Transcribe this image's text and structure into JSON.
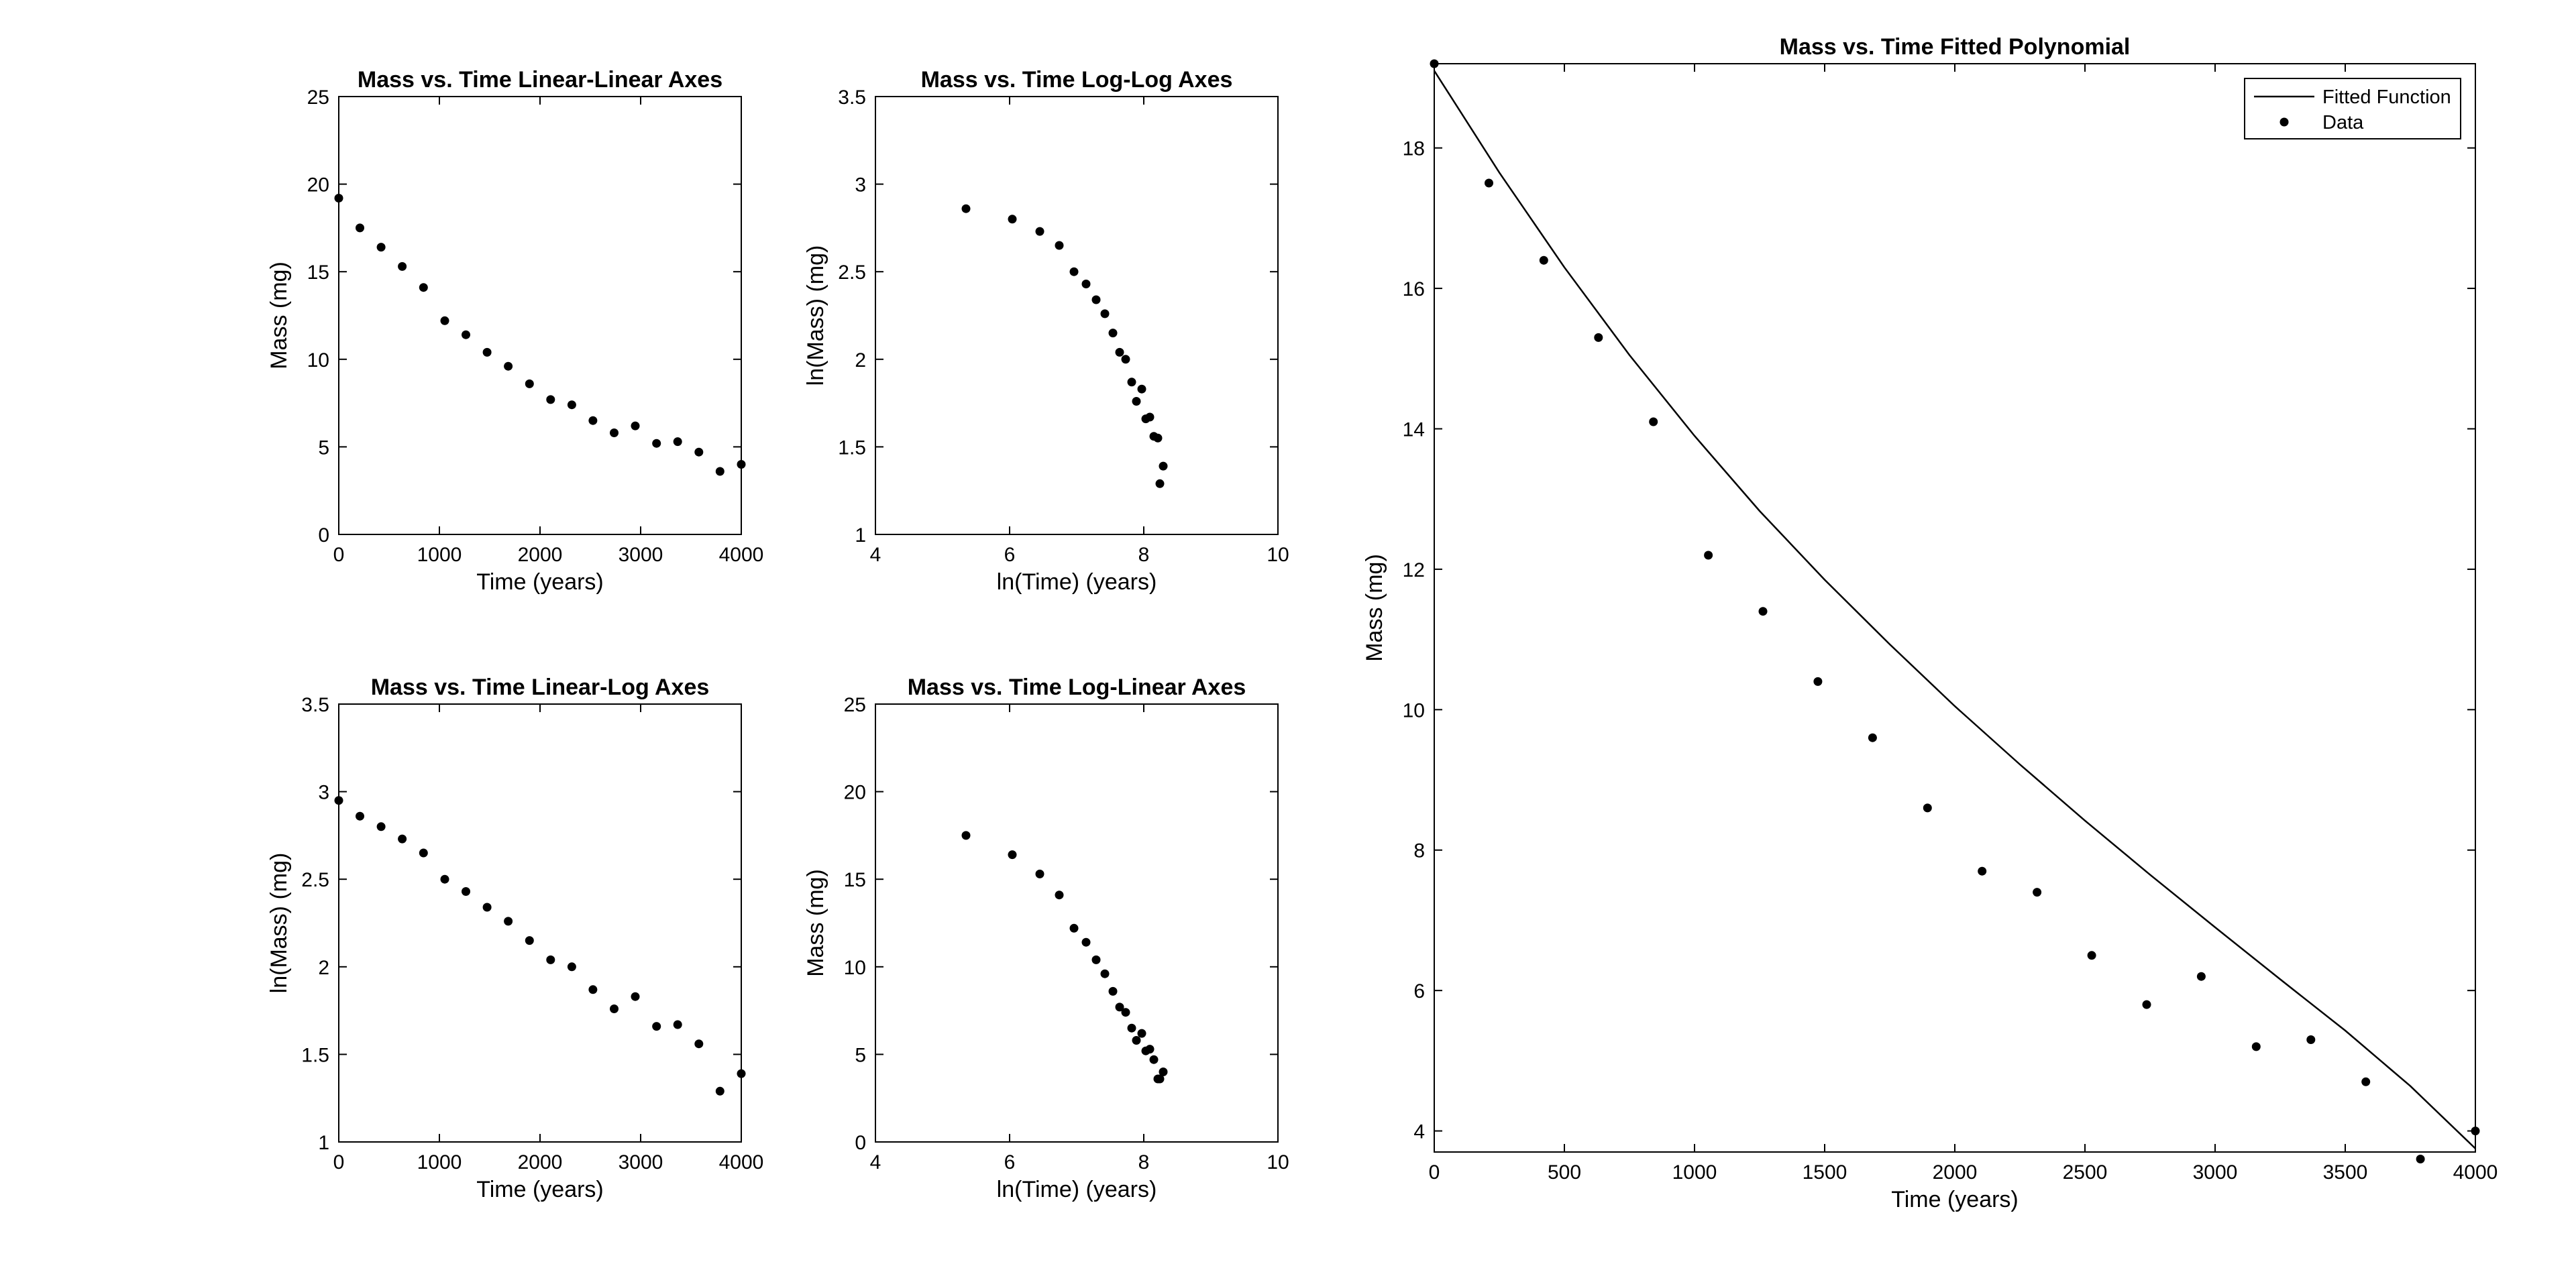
{
  "figure": {
    "background": "#ffffff",
    "ink": "#000000"
  },
  "chart_data": [
    {
      "id": "lin-lin",
      "type": "scatter",
      "title": "Mass vs. Time Linear-Linear Axes",
      "xlabel": "Time (years)",
      "ylabel": "Mass (mg)",
      "xlim": [
        0,
        4000
      ],
      "ylim": [
        0,
        25
      ],
      "xticks": [
        0,
        1000,
        2000,
        3000,
        4000
      ],
      "yticks": [
        0,
        5,
        10,
        15,
        20,
        25
      ],
      "xtick_labels": [
        "0",
        "1000",
        "2000",
        "3000",
        "4000"
      ],
      "ytick_labels": [
        "0",
        "5",
        "10",
        "15",
        "20",
        "25"
      ],
      "grid": false,
      "series": [
        {
          "marker": "dot",
          "x": [
            0,
            210,
            421,
            631,
            842,
            1053,
            1263,
            1474,
            1684,
            1895,
            2105,
            2316,
            2526,
            2737,
            2947,
            3158,
            3368,
            3579,
            3789,
            4000
          ],
          "y": [
            19.2,
            17.5,
            16.4,
            15.3,
            14.1,
            12.2,
            11.4,
            10.4,
            9.6,
            8.6,
            7.7,
            7.4,
            6.5,
            5.8,
            6.2,
            5.2,
            5.3,
            4.7,
            3.6,
            4.0
          ]
        }
      ]
    },
    {
      "id": "log-log",
      "type": "scatter",
      "title": "Mass vs. Time Log-Log Axes",
      "xlabel": "ln(Time) (years)",
      "ylabel": "ln(Mass) (mg)",
      "xlim": [
        4,
        10
      ],
      "ylim": [
        1,
        3.5
      ],
      "xticks": [
        4,
        6,
        8,
        10
      ],
      "yticks": [
        1,
        1.5,
        2,
        2.5,
        3,
        3.5
      ],
      "xtick_labels": [
        "4",
        "6",
        "8",
        "10"
      ],
      "ytick_labels": [
        "1",
        "1.5",
        "2",
        "2.5",
        "3",
        "3.5"
      ],
      "grid": false,
      "series": [
        {
          "marker": "dot",
          "x": [
            5.35,
            6.04,
            6.45,
            6.74,
            6.96,
            7.14,
            7.29,
            7.42,
            7.54,
            7.64,
            7.73,
            7.82,
            7.89,
            7.97,
            8.03,
            8.09,
            8.15,
            8.21,
            8.24,
            8.29
          ],
          "y": [
            2.86,
            2.8,
            2.73,
            2.65,
            2.5,
            2.43,
            2.34,
            2.26,
            2.15,
            2.04,
            2.0,
            1.87,
            1.76,
            1.83,
            1.66,
            1.67,
            1.56,
            1.55,
            1.29,
            1.39
          ]
        }
      ]
    },
    {
      "id": "lin-log",
      "type": "scatter",
      "title": "Mass vs. Time Linear-Log Axes",
      "xlabel": "Time (years)",
      "ylabel": "ln(Mass) (mg)",
      "xlim": [
        0,
        4000
      ],
      "ylim": [
        1,
        3.5
      ],
      "xticks": [
        0,
        1000,
        2000,
        3000,
        4000
      ],
      "yticks": [
        1,
        1.5,
        2,
        2.5,
        3,
        3.5
      ],
      "xtick_labels": [
        "0",
        "1000",
        "2000",
        "3000",
        "4000"
      ],
      "ytick_labels": [
        "1",
        "1.5",
        "2",
        "2.5",
        "3",
        "3.5"
      ],
      "grid": false,
      "series": [
        {
          "marker": "dot",
          "x": [
            0,
            210,
            421,
            631,
            842,
            1053,
            1263,
            1474,
            1684,
            1895,
            2105,
            2316,
            2526,
            2737,
            2947,
            3158,
            3368,
            3579,
            3789,
            4000
          ],
          "y": [
            2.95,
            2.86,
            2.8,
            2.73,
            2.65,
            2.5,
            2.43,
            2.34,
            2.26,
            2.15,
            2.04,
            2.0,
            1.87,
            1.76,
            1.83,
            1.66,
            1.67,
            1.56,
            1.29,
            1.39
          ]
        }
      ]
    },
    {
      "id": "log-lin",
      "type": "scatter",
      "title": "Mass vs. Time Log-Linear Axes",
      "xlabel": "ln(Time) (years)",
      "ylabel": "Mass (mg)",
      "xlim": [
        4,
        10
      ],
      "ylim": [
        0,
        25
      ],
      "xticks": [
        4,
        6,
        8,
        10
      ],
      "yticks": [
        0,
        5,
        10,
        15,
        20,
        25
      ],
      "xtick_labels": [
        "4",
        "6",
        "8",
        "10"
      ],
      "ytick_labels": [
        "0",
        "5",
        "10",
        "15",
        "20",
        "25"
      ],
      "grid": false,
      "series": [
        {
          "marker": "dot",
          "x": [
            5.35,
            6.04,
            6.45,
            6.74,
            6.96,
            7.14,
            7.29,
            7.42,
            7.54,
            7.64,
            7.73,
            7.82,
            7.89,
            7.97,
            8.03,
            8.09,
            8.15,
            8.21,
            8.24,
            8.29
          ],
          "y": [
            17.5,
            16.4,
            15.3,
            14.1,
            12.2,
            11.4,
            10.4,
            9.6,
            8.6,
            7.7,
            7.4,
            6.5,
            5.8,
            6.2,
            5.2,
            5.3,
            4.7,
            3.6,
            3.6,
            4.0
          ]
        }
      ]
    },
    {
      "id": "fitted",
      "type": "line",
      "title": "Mass vs. Time Fitted Polynomial",
      "xlabel": "Time (years)",
      "ylabel": "Mass (mg)",
      "xlim": [
        0,
        4000
      ],
      "ylim": [
        3.7,
        19.2
      ],
      "xticks": [
        0,
        500,
        1000,
        1500,
        2000,
        2500,
        3000,
        3500,
        4000
      ],
      "yticks": [
        4,
        6,
        8,
        10,
        12,
        14,
        16,
        18
      ],
      "xtick_labels": [
        "0",
        "500",
        "1000",
        "1500",
        "2000",
        "2500",
        "3000",
        "3500",
        "4000"
      ],
      "ytick_labels": [
        "4",
        "6",
        "8",
        "10",
        "12",
        "14",
        "16",
        "18"
      ],
      "grid": false,
      "legend": "top-right",
      "series": [
        {
          "name": "Fitted Function",
          "style": "line",
          "x": [
            0,
            250,
            500,
            750,
            1000,
            1250,
            1500,
            1750,
            2000,
            2250,
            2500,
            2750,
            3000,
            3250,
            3500,
            3750,
            4000
          ],
          "y": [
            19.1,
            17.65,
            16.3,
            15.05,
            13.9,
            12.83,
            11.85,
            10.93,
            10.05,
            9.22,
            8.42,
            7.65,
            6.9,
            6.16,
            5.43,
            4.64,
            3.75
          ]
        },
        {
          "name": "Data",
          "style": "dot",
          "x": [
            0,
            210,
            421,
            631,
            842,
            1053,
            1263,
            1474,
            1684,
            1895,
            2105,
            2316,
            2526,
            2737,
            2947,
            3158,
            3368,
            3579,
            3789,
            4000
          ],
          "y": [
            19.2,
            17.5,
            16.4,
            15.3,
            14.1,
            12.2,
            11.4,
            10.4,
            9.6,
            8.6,
            7.7,
            7.4,
            6.5,
            5.8,
            6.2,
            5.2,
            5.3,
            4.7,
            3.6,
            4.0
          ]
        }
      ]
    }
  ]
}
